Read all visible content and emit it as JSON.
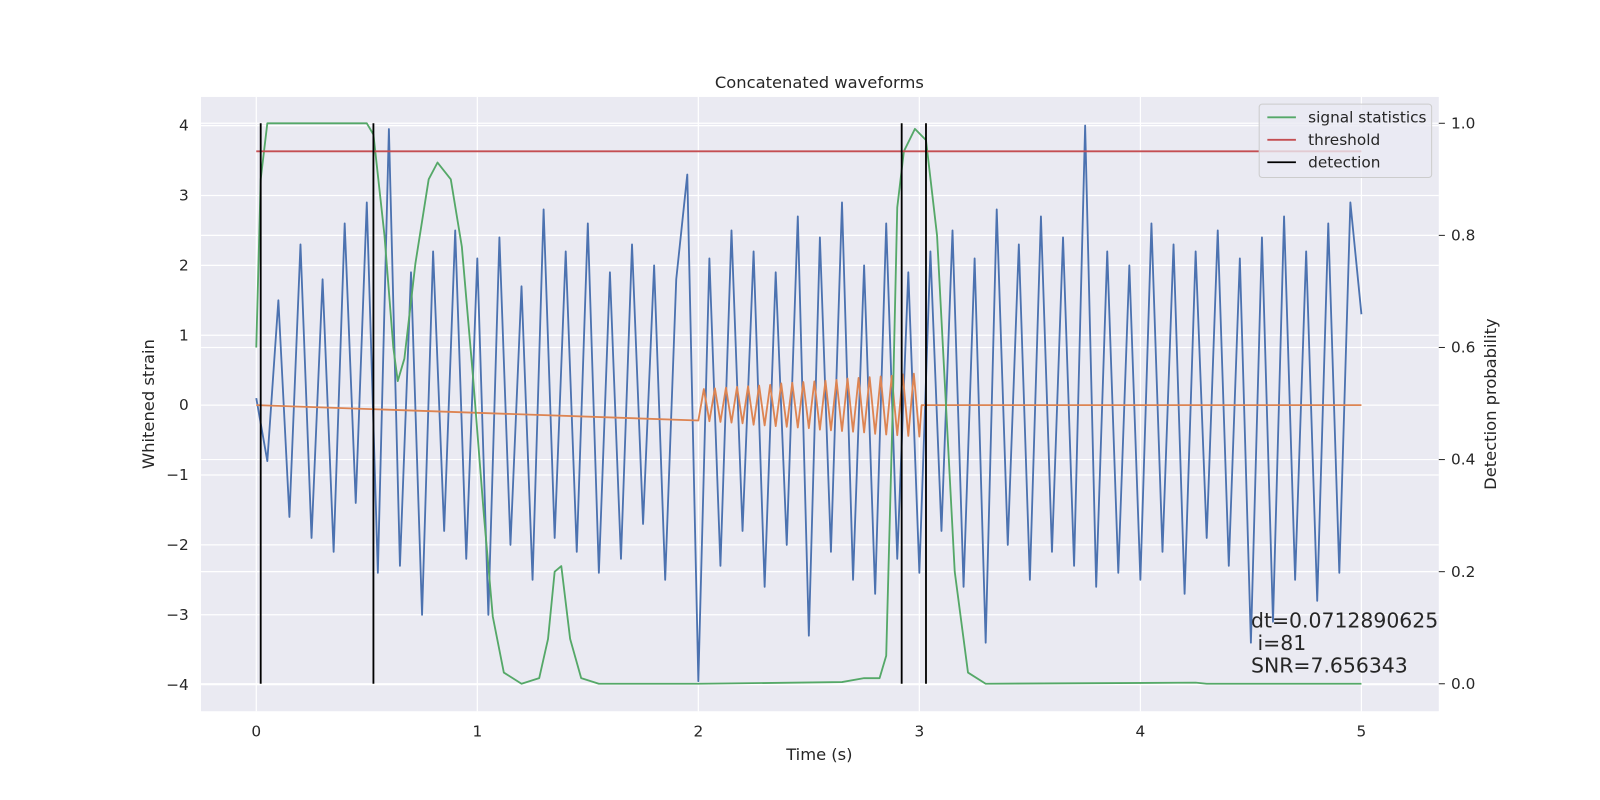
{
  "chart_data": {
    "type": "line",
    "title": "Concatenated waveforms",
    "x_label": "Time (s)",
    "y_label": "Whitened strain",
    "y2_label": "Detection probability",
    "xlim": [
      -0.25,
      5.35
    ],
    "ylim": [
      -4.38,
      4.41
    ],
    "y2lim": [
      -0.049,
      1.047
    ],
    "xticks": [
      0,
      1,
      2,
      3,
      4,
      5
    ],
    "yticks": [
      {
        "value": -4,
        "label": "−4"
      },
      {
        "value": -3,
        "label": "−3"
      },
      {
        "value": -2,
        "label": "−2"
      },
      {
        "value": -1,
        "label": "−1"
      },
      0,
      1,
      2,
      3,
      4
    ],
    "y2ticks": [
      {
        "value": 0,
        "label": "0.0"
      },
      0.2,
      0.4,
      0.6,
      0.8,
      {
        "value": 1,
        "label": "1.0"
      }
    ],
    "grid": true,
    "legend": "upper right",
    "series": [
      {
        "color": "#4c72b0",
        "axis": "y",
        "x": [
          0,
          0.05,
          0.1,
          0.15,
          0.2,
          0.25,
          0.3,
          0.35,
          0.4,
          0.45,
          0.5,
          0.55,
          0.6,
          0.65,
          0.7,
          0.75,
          0.8,
          0.85,
          0.9,
          0.95,
          1.0,
          1.05,
          1.1,
          1.15,
          1.2,
          1.25,
          1.3,
          1.35,
          1.4,
          1.45,
          1.5,
          1.55,
          1.6,
          1.65,
          1.7,
          1.75,
          1.8,
          1.85,
          1.9,
          1.95,
          2.0,
          2.05,
          2.1,
          2.15,
          2.2,
          2.25,
          2.3,
          2.35,
          2.4,
          2.45,
          2.5,
          2.55,
          2.6,
          2.65,
          2.7,
          2.75,
          2.8,
          2.85,
          2.9,
          2.95,
          3.0,
          3.05,
          3.1,
          3.15,
          3.2,
          3.25,
          3.3,
          3.35,
          3.4,
          3.45,
          3.5,
          3.55,
          3.6,
          3.65,
          3.7,
          3.75,
          3.8,
          3.85,
          3.9,
          3.95,
          4.0,
          4.05,
          4.1,
          4.15,
          4.2,
          4.25,
          4.3,
          4.35,
          4.4,
          4.45,
          4.5,
          4.55,
          4.6,
          4.65,
          4.7,
          4.75,
          4.8,
          4.85,
          4.9,
          4.95,
          5.0
        ],
        "values": [
          0.1,
          -0.8,
          1.5,
          -1.6,
          2.3,
          -1.9,
          1.8,
          -2.1,
          2.6,
          -1.4,
          2.9,
          -2.4,
          3.95,
          -2.3,
          1.9,
          -3.0,
          2.2,
          -1.8,
          2.5,
          -2.2,
          2.1,
          -3.0,
          2.4,
          -2.0,
          1.7,
          -2.5,
          2.8,
          -1.9,
          2.2,
          -2.1,
          2.6,
          -2.4,
          1.9,
          -2.2,
          2.3,
          -1.7,
          2.0,
          -2.5,
          1.8,
          3.3,
          -3.95,
          2.1,
          -2.3,
          2.5,
          -1.8,
          2.2,
          -2.6,
          1.9,
          -2.0,
          2.7,
          -3.3,
          2.4,
          -2.1,
          2.9,
          -2.5,
          2.0,
          -2.7,
          2.6,
          -2.2,
          1.9,
          -2.4,
          2.2,
          -1.8,
          2.5,
          -2.6,
          2.1,
          -3.4,
          2.8,
          -2.0,
          2.3,
          -2.5,
          2.7,
          -2.1,
          2.4,
          -2.3,
          4.0,
          -2.6,
          2.2,
          -2.4,
          2.0,
          -2.5,
          2.6,
          -2.1,
          2.3,
          -2.7,
          2.2,
          -1.9,
          2.5,
          -2.3,
          2.1,
          -3.4,
          2.4,
          -3.1,
          2.7,
          -2.5,
          2.2,
          -2.8,
          2.6,
          -2.4,
          2.9,
          1.3
        ]
      },
      {
        "color": "#dd8452",
        "axis": "y",
        "x": [
          0,
          2.0,
          2.025,
          2.05,
          2.075,
          2.1,
          2.125,
          2.15,
          2.175,
          2.2,
          2.225,
          2.25,
          2.275,
          2.3,
          2.325,
          2.35,
          2.375,
          2.4,
          2.425,
          2.45,
          2.475,
          2.5,
          2.525,
          2.55,
          2.575,
          2.6,
          2.625,
          2.65,
          2.675,
          2.7,
          2.725,
          2.75,
          2.775,
          2.8,
          2.825,
          2.85,
          2.875,
          2.9,
          2.925,
          2.95,
          2.975,
          3.0,
          3.01,
          5
        ],
        "values": [
          0,
          -0.22,
          0.23,
          -0.23,
          0.24,
          -0.24,
          0.25,
          -0.25,
          0.26,
          -0.26,
          0.27,
          -0.28,
          0.28,
          -0.29,
          0.29,
          -0.3,
          0.31,
          -0.31,
          0.32,
          -0.32,
          0.33,
          -0.33,
          0.34,
          -0.35,
          0.35,
          -0.36,
          0.36,
          -0.37,
          0.38,
          -0.38,
          0.39,
          -0.39,
          0.4,
          -0.41,
          0.41,
          -0.42,
          0.42,
          -0.43,
          0.44,
          -0.44,
          0.45,
          -0.45,
          0,
          0
        ]
      },
      {
        "name": "signal statistics",
        "color": "#55a868",
        "axis": "y2",
        "x": [
          0,
          0.02,
          0.05,
          0.1,
          0.5,
          0.53,
          0.58,
          0.62,
          0.64,
          0.67,
          0.72,
          0.78,
          0.82,
          0.88,
          0.93,
          0.98,
          1.03,
          1.07,
          1.12,
          1.2,
          1.28,
          1.32,
          1.35,
          1.38,
          1.42,
          1.47,
          1.55,
          2.0,
          2.65,
          2.75,
          2.82,
          2.85,
          2.88,
          2.9,
          2.93,
          2.98,
          3.03,
          3.08,
          3.12,
          3.16,
          3.22,
          3.3,
          4.25,
          4.3,
          5.0
        ],
        "values": [
          0.6,
          0.9,
          1.0,
          1.0,
          1.0,
          0.98,
          0.8,
          0.6,
          0.54,
          0.58,
          0.75,
          0.9,
          0.93,
          0.9,
          0.78,
          0.55,
          0.3,
          0.12,
          0.02,
          0.0,
          0.01,
          0.08,
          0.2,
          0.21,
          0.08,
          0.01,
          0.0,
          0.0,
          0.003,
          0.01,
          0.01,
          0.05,
          0.5,
          0.85,
          0.95,
          0.99,
          0.97,
          0.8,
          0.5,
          0.2,
          0.02,
          0.0,
          0.002,
          0.0,
          0.0
        ]
      },
      {
        "name": "threshold",
        "color": "#c44e52",
        "axis": "y2",
        "x": [
          0,
          5
        ],
        "values": [
          0.95,
          0.95
        ]
      }
    ],
    "detections": {
      "name": "detection",
      "color": "#000000",
      "axis": "y2",
      "x": [
        0.02,
        0.53,
        2.92,
        3.03
      ],
      "y_range": [
        0,
        1
      ]
    },
    "annotation": [
      "dt=0.0712890625",
      " i=81",
      "SNR=7.656343"
    ]
  }
}
